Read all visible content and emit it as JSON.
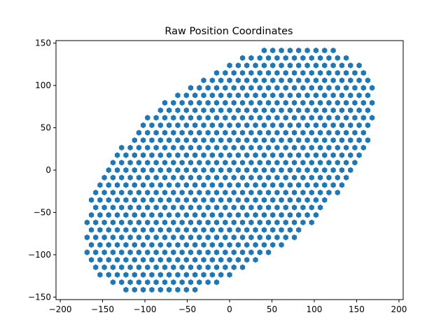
{
  "chart_data": {
    "type": "scatter",
    "title": "Raw Position Coordinates",
    "xlabel": "",
    "ylabel": "",
    "xlim": [
      -205,
      205
    ],
    "ylim": [
      -153,
      153
    ],
    "xticks": [
      -200,
      -150,
      -100,
      -50,
      0,
      50,
      100,
      150,
      200
    ],
    "yticks": [
      -150,
      -100,
      -50,
      0,
      50,
      100,
      150
    ],
    "xtick_labels": [
      "−200",
      "−150",
      "−100",
      "−50",
      "0",
      "50",
      "100",
      "150",
      "200"
    ],
    "ytick_labels": [
      "−150",
      "−100",
      "−50",
      "0",
      "50",
      "100",
      "150"
    ],
    "grid": false,
    "legend": "none",
    "marker": "hexagon",
    "color": "#1f77b4",
    "series": [
      {
        "description_of_extent": "hexagonal lattice of points filling a tilted ellipse",
        "center": [
          0,
          0
        ],
        "semi_major": 200,
        "semi_minor": 110,
        "rotation_deg": 37,
        "lattice_spacing": 10.2
      }
    ]
  }
}
